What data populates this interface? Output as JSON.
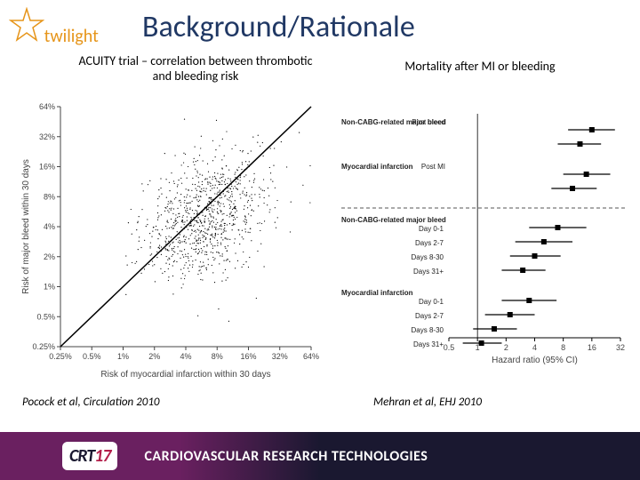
{
  "logo": {
    "text": "twilight",
    "color": "#e6951a"
  },
  "title": "Background/Rationale",
  "subtitles": {
    "left": "ACUITY trial – correlation between thrombotic and bleeding risk",
    "right": "Mortality after MI or bleeding"
  },
  "citations": {
    "left_author": "Pocock et al, ",
    "left_journal": "Circulation 2010",
    "right_author": "Mehran et al, ",
    "right_journal": "EHJ 2010"
  },
  "footer": {
    "badge_prefix": "CRT",
    "badge_year": "17",
    "title": "CARDIOVASCULAR RESEARCH TECHNOLOGIES"
  },
  "scatter": {
    "type": "scatter",
    "xlabel": "Risk of myocardial infarction within 30 days",
    "ylabel": "Risk of major bleed within 30 days",
    "xticks": [
      "0.25%",
      "0.5%",
      "1%",
      "2%",
      "4%",
      "8%",
      "16%",
      "32%",
      "64%"
    ],
    "yticks": [
      "0.25%",
      "0.5%",
      "1%",
      "2%",
      "4%",
      "8%",
      "16%",
      "32%",
      "64%"
    ],
    "xlim": [
      0.25,
      64
    ],
    "ylim": [
      0.25,
      64
    ],
    "scale": "log",
    "axis_color": "#444444",
    "point_color": "#000000",
    "line_color": "#000000",
    "background": "#ffffff",
    "cloud_center_x": 6.0,
    "cloud_center_y": 5.0,
    "cloud_spread": 1.2,
    "n_points": 900
  },
  "forest": {
    "type": "forest",
    "xlabel": "Hazard ratio (95% CI)",
    "xticks": [
      0.5,
      1,
      2,
      4,
      8,
      16,
      32
    ],
    "xscale": "log",
    "ref_line": 1,
    "background": "#ffffff",
    "marker_color": "#000000",
    "line_color": "#000000",
    "dash_color": "#555555",
    "groups": [
      {
        "heading": "Non-CABG-related major bleed",
        "label_right": "Post bleed",
        "rows": [
          {
            "label": "",
            "hr": 16,
            "lo": 9,
            "hi": 28
          },
          {
            "label": "",
            "hr": 12,
            "lo": 7,
            "hi": 20
          }
        ]
      },
      {
        "heading": "Myocardial infarction",
        "label_right": "Post MI",
        "rows": [
          {
            "label": "",
            "hr": 14,
            "lo": 8,
            "hi": 25
          },
          {
            "label": "",
            "hr": 10,
            "lo": 6,
            "hi": 18
          }
        ]
      },
      {
        "divider": true
      },
      {
        "heading": "Non-CABG-related major bleed",
        "rows": [
          {
            "label": "Day 0-1",
            "hr": 7.0,
            "lo": 3.5,
            "hi": 14
          },
          {
            "label": "Days 2-7",
            "hr": 5.0,
            "lo": 2.5,
            "hi": 10
          },
          {
            "label": "Days 8-30",
            "hr": 4.0,
            "lo": 2.2,
            "hi": 7.5
          },
          {
            "label": "Days 31+",
            "hr": 3.0,
            "lo": 1.8,
            "hi": 5.2
          }
        ]
      },
      {
        "heading": "Myocardial infarction",
        "rows": [
          {
            "label": "Day 0-1",
            "hr": 3.5,
            "lo": 1.8,
            "hi": 6.8
          },
          {
            "label": "Days 2-7",
            "hr": 2.2,
            "lo": 1.2,
            "hi": 4.0
          },
          {
            "label": "Days 8-30",
            "hr": 1.5,
            "lo": 0.9,
            "hi": 2.6
          },
          {
            "label": "Days 31+",
            "hr": 1.1,
            "lo": 0.7,
            "hi": 1.8
          }
        ]
      }
    ]
  }
}
